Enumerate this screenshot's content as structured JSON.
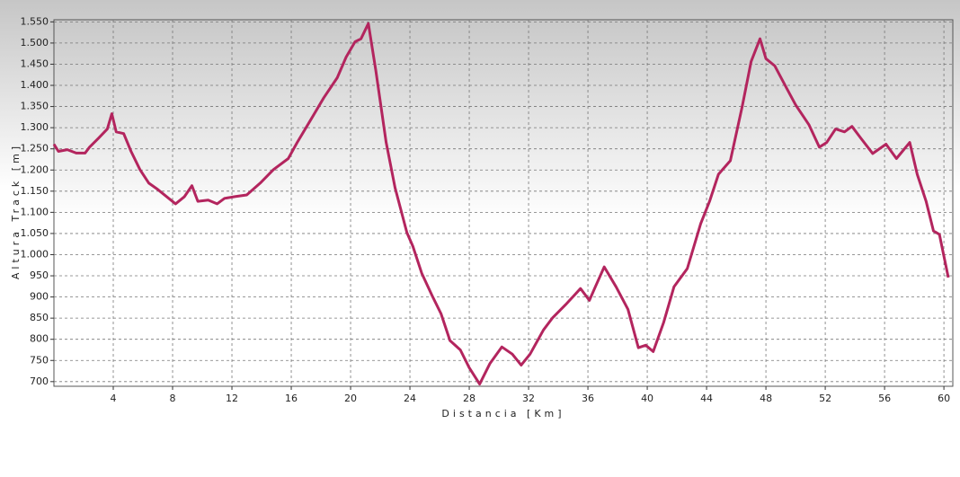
{
  "chart_data": {
    "type": "line",
    "x_label": "Distancia [Km]",
    "y_label": "Altura Track [m]",
    "color": "#b3255e",
    "grid": true,
    "xlim": [
      0,
      60.6
    ],
    "ylim": [
      689,
      1555
    ],
    "xticks": [
      4,
      8,
      12,
      16,
      20,
      24,
      28,
      32,
      36,
      40,
      44,
      48,
      52,
      56,
      60
    ],
    "yticks": [
      700,
      750,
      800,
      850,
      900,
      950,
      {
        "value": 1000,
        "label": "1.000"
      },
      {
        "value": 1050,
        "label": "1.050"
      },
      {
        "value": 1100,
        "label": "1.100"
      },
      {
        "value": 1150,
        "label": "1.150"
      },
      {
        "value": 1200,
        "label": "1.200"
      },
      {
        "value": 1250,
        "label": "1.250"
      },
      {
        "value": 1300,
        "label": "1.300"
      },
      {
        "value": 1350,
        "label": "1.350"
      },
      {
        "value": 1400,
        "label": "1.400"
      },
      {
        "value": 1450,
        "label": "1.450"
      },
      {
        "value": 1500,
        "label": "1.500"
      },
      {
        "value": 1550,
        "label": "1.550"
      }
    ],
    "x": [
      0,
      0.3,
      0.9,
      1.5,
      2.1,
      2.4,
      3.0,
      3.6,
      3.9,
      4.2,
      4.7,
      5.2,
      5.8,
      6.4,
      7.0,
      7.6,
      8.2,
      8.8,
      9.3,
      9.7,
      10.4,
      11.0,
      11.5,
      12.2,
      13.0,
      13.9,
      14.8,
      15.8,
      16.4,
      17.3,
      18.2,
      19.1,
      19.7,
      20.3,
      20.7,
      21.2,
      21.7,
      22.4,
      23.0,
      23.8,
      24.2,
      24.8,
      25.5,
      26.1,
      26.7,
      27.4,
      28.0,
      28.7,
      29.4,
      30.2,
      30.9,
      31.5,
      32.1,
      33.0,
      33.6,
      34.5,
      35.5,
      36.1,
      36.5,
      37.1,
      37.9,
      38.7,
      39.4,
      39.9,
      40.4,
      41.1,
      41.8,
      42.7,
      43.6,
      44.2,
      44.8,
      45.6,
      46.4,
      47.0,
      47.6,
      48.0,
      48.6,
      49.4,
      50.0,
      50.9,
      51.6,
      52.1,
      52.7,
      53.3,
      53.8,
      54.4,
      55.2,
      56.1,
      56.8,
      57.7,
      58.2,
      58.8,
      59.3,
      59.7,
      60.3
    ],
    "values": [
      1261,
      1244,
      1248,
      1240,
      1240,
      1254,
      1275,
      1297,
      1333,
      1290,
      1286,
      1244,
      1201,
      1169,
      1154,
      1137,
      1120,
      1137,
      1163,
      1126,
      1129,
      1120,
      1133,
      1137,
      1141,
      1169,
      1201,
      1227,
      1265,
      1318,
      1371,
      1418,
      1467,
      1503,
      1510,
      1546,
      1435,
      1265,
      1158,
      1052,
      1020,
      956,
      903,
      860,
      797,
      775,
      733,
      694,
      743,
      782,
      765,
      739,
      765,
      822,
      850,
      882,
      920,
      892,
      924,
      971,
      924,
      871,
      780,
      786,
      771,
      839,
      924,
      967,
      1073,
      1126,
      1190,
      1222,
      1350,
      1456,
      1510,
      1463,
      1446,
      1393,
      1354,
      1307,
      1254,
      1265,
      1297,
      1290,
      1303,
      1275,
      1239,
      1261,
      1227,
      1265,
      1190,
      1126,
      1056,
      1048,
      946
    ]
  }
}
